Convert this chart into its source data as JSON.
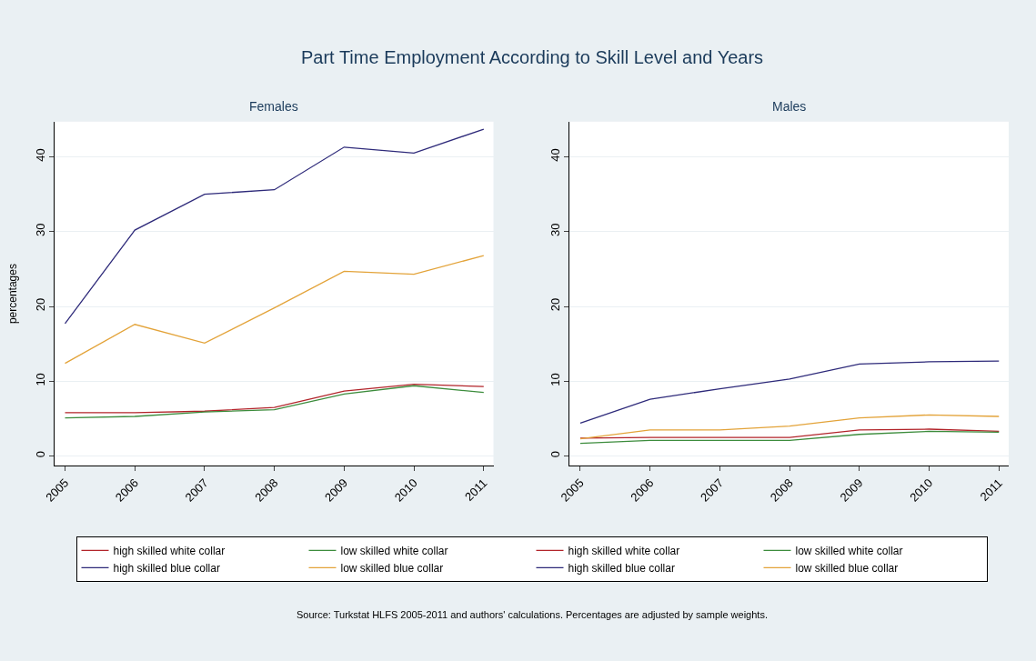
{
  "chart_data": [
    {
      "type": "line",
      "title": "Part Time Employment According to Skill Level and Years",
      "subtitle": "Females",
      "ylabel": "percentages",
      "x": [
        2005,
        2006,
        2007,
        2008,
        2009,
        2010,
        2011
      ],
      "xlim": [
        2004.85,
        2011.14
      ],
      "xticks": [
        2005,
        2006,
        2007,
        2008,
        2009,
        2010,
        2011
      ],
      "ylim": [
        -1.3,
        44.7
      ],
      "yticks": [
        0,
        10,
        20,
        30,
        40
      ],
      "grid": "y",
      "legend": "bottom",
      "marker": "none",
      "line_style": "solid",
      "series": [
        {
          "name": "high skilled white collar",
          "color": "#b2242a",
          "values": [
            5.8,
            5.8,
            6.0,
            6.5,
            8.7,
            9.6,
            9.3
          ]
        },
        {
          "name": "low skilled white collar",
          "color": "#3c8c3c",
          "values": [
            5.1,
            5.3,
            5.9,
            6.2,
            8.3,
            9.4,
            8.5
          ]
        },
        {
          "name": "high skilled blue collar",
          "color": "#2e2a7a",
          "values": [
            17.7,
            30.2,
            35.0,
            35.6,
            41.3,
            40.5,
            43.7
          ]
        },
        {
          "name": "low skilled blue collar",
          "color": "#e3a339",
          "values": [
            12.4,
            17.6,
            15.1,
            19.8,
            24.7,
            24.3,
            26.8
          ]
        }
      ],
      "annotations": [
        "Source: Turkstat HLFS 2005-2011 and authors' calculations. Percentages are adjusted by sample weights."
      ]
    },
    {
      "type": "line",
      "subtitle": "Males",
      "x": [
        2005,
        2006,
        2007,
        2008,
        2009,
        2010,
        2011
      ],
      "xlim": [
        2004.85,
        2011.14
      ],
      "xticks": [
        2005,
        2006,
        2007,
        2008,
        2009,
        2010,
        2011
      ],
      "ylim": [
        -1.3,
        44.7
      ],
      "yticks": [
        0,
        10,
        20,
        30,
        40
      ],
      "grid": "y",
      "legend": "bottom",
      "marker": "none",
      "line_style": "solid",
      "series": [
        {
          "name": "high skilled white collar",
          "color": "#b2242a",
          "values": [
            2.4,
            2.5,
            2.5,
            2.5,
            3.5,
            3.6,
            3.3
          ]
        },
        {
          "name": "low skilled white collar",
          "color": "#3c8c3c",
          "values": [
            1.7,
            2.1,
            2.1,
            2.1,
            2.9,
            3.3,
            3.2
          ]
        },
        {
          "name": "high skilled blue collar",
          "color": "#2e2a7a",
          "values": [
            4.4,
            7.6,
            9.0,
            10.3,
            12.3,
            12.6,
            12.7
          ]
        },
        {
          "name": "low skilled blue collar",
          "color": "#e3a339",
          "values": [
            2.3,
            3.5,
            3.5,
            4.0,
            5.1,
            5.5,
            5.3
          ]
        }
      ]
    }
  ]
}
